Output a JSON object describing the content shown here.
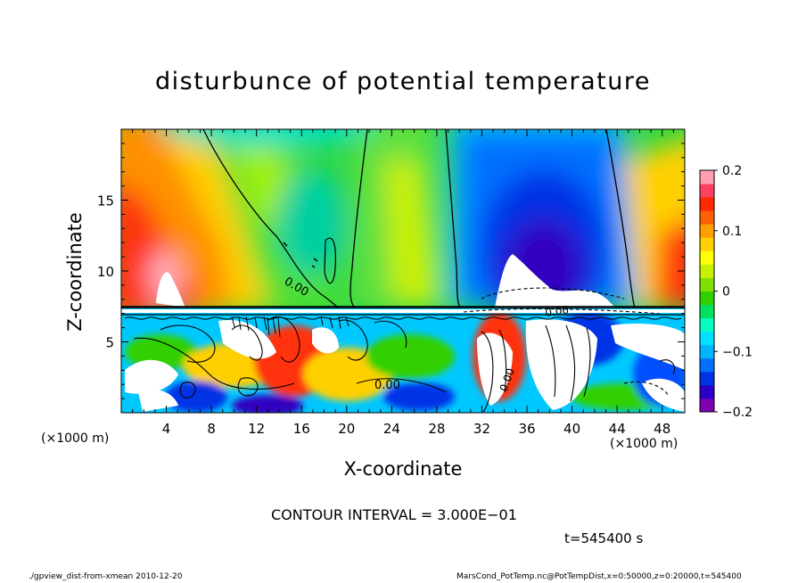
{
  "chart_data": {
    "type": "heatmap",
    "title": "disturbunce of potential temperature",
    "xlabel": "X-coordinate",
    "ylabel": "Z-coordinate",
    "x_unit_left": "(×1000 m)",
    "x_unit_right": "(×1000 m)",
    "xlim": [
      0,
      50
    ],
    "ylim": [
      0,
      20
    ],
    "x_ticks": [
      4,
      8,
      12,
      16,
      20,
      24,
      28,
      32,
      36,
      40,
      44,
      48
    ],
    "x_tick_labels": [
      "4",
      "8",
      "12",
      "16",
      "20",
      "24",
      "28",
      "32",
      "36",
      "40",
      "44",
      "48"
    ],
    "y_ticks": [
      5,
      10,
      15
    ],
    "y_tick_labels": [
      "5",
      "10",
      "15"
    ],
    "colorbar": {
      "range": [
        -0.2,
        0.2
      ],
      "tick_values": [
        0.2,
        0.1,
        0,
        -0.1,
        -0.2
      ],
      "tick_labels": [
        "0.2",
        "0.1",
        "0",
        "−0.1",
        "−0.2"
      ],
      "colors": [
        "#7f00b0",
        "#2800c8",
        "#0032e6",
        "#0070ff",
        "#00b4ff",
        "#00e0ff",
        "#00ffc0",
        "#00e060",
        "#30d000",
        "#7fe000",
        "#c8f000",
        "#ffff00",
        "#ffd000",
        "#ffa000",
        "#ff6000",
        "#ff2800",
        "#ff4060",
        "#ffa0b0"
      ]
    },
    "contour_labels": [
      "0.00",
      "0.00",
      "0.00",
      "0.00"
    ],
    "contour_interval_text": "CONTOUR INTERVAL = 3.000E−01",
    "time_text": "t=545400 s"
  },
  "footer": {
    "left": "./gpview_dist-from-xmean  2010-12-20",
    "right": "MarsCond_PotTemp.nc@PotTempDist,x=0:50000,z=0:20000,t=545400"
  }
}
